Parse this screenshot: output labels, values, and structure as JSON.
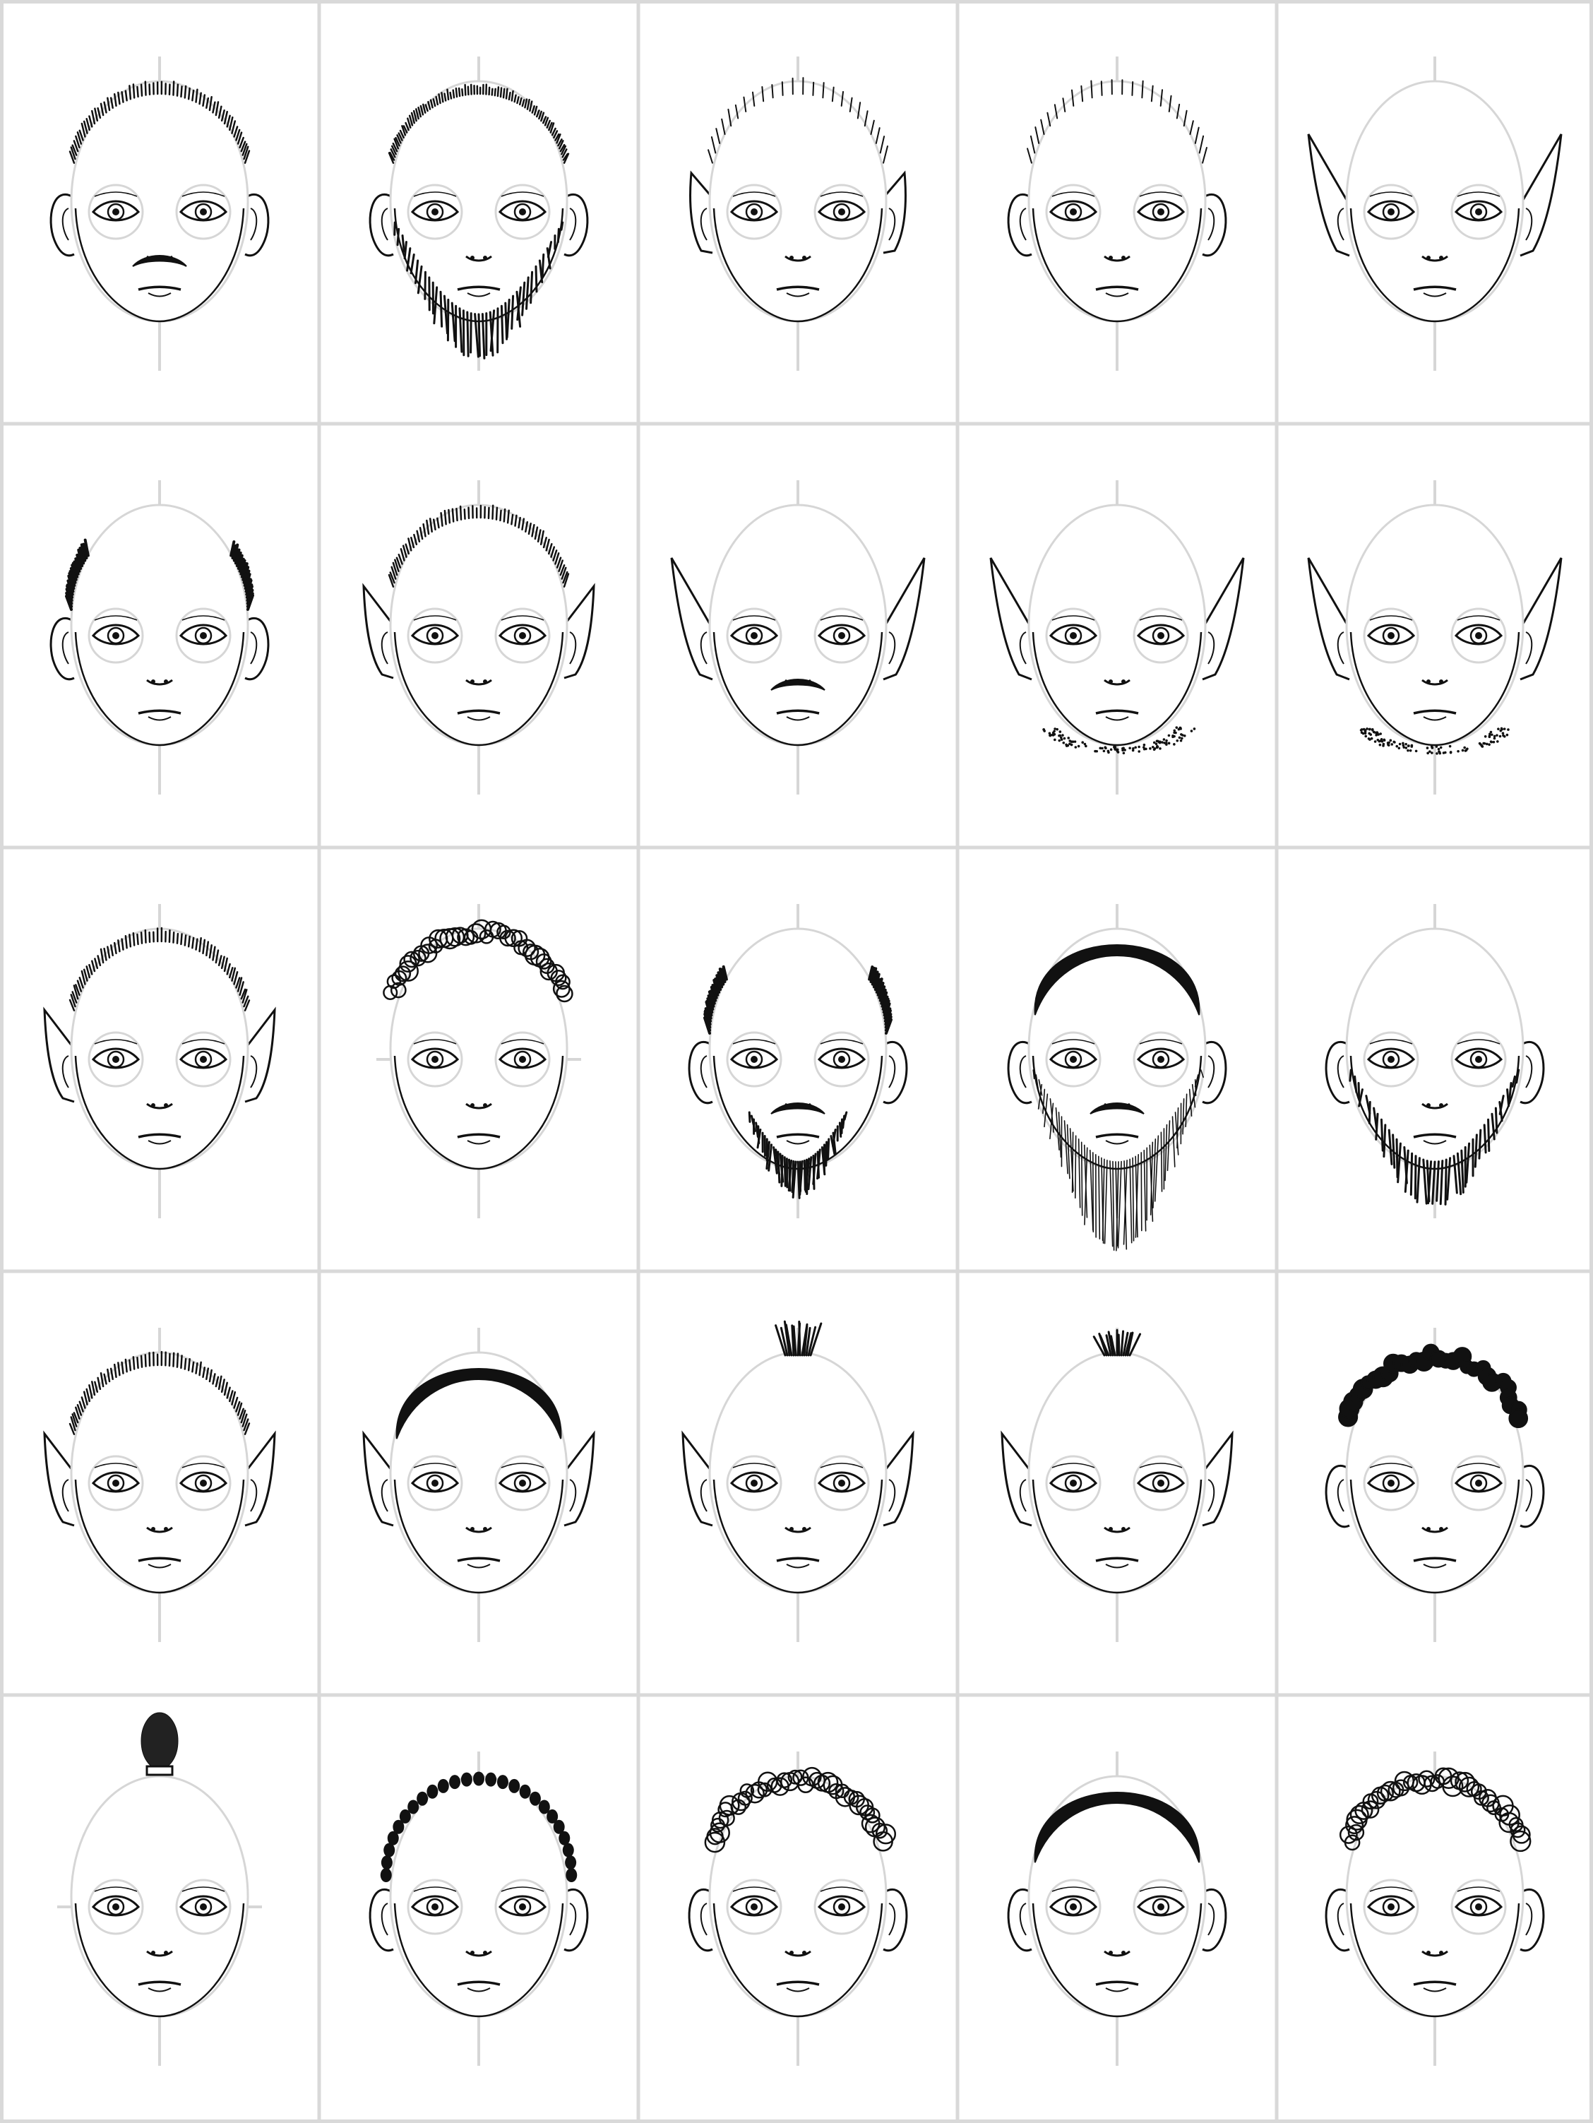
{
  "sheet": {
    "rows": 5,
    "columns": 5,
    "background": "#ffffff",
    "grid_line_color": "#d9d9d9",
    "guide_color": "#d6d6d6",
    "ink_color": "#111111"
  },
  "faces": [
    {
      "hair": "short-spiky",
      "ears": "normal",
      "beard": "none",
      "mustache": true
    },
    {
      "hair": "buzz",
      "ears": "normal",
      "beard": "full",
      "mustache": false
    },
    {
      "hair": "wavy",
      "ears": "small-pointed",
      "beard": "none",
      "mustache": false
    },
    {
      "hair": "wavy",
      "ears": "normal",
      "beard": "none",
      "mustache": false
    },
    {
      "hair": "none",
      "ears": "long-pointed",
      "beard": "none",
      "mustache": false
    },
    {
      "hair": "bald-sides",
      "ears": "normal",
      "beard": "none",
      "mustache": false
    },
    {
      "hair": "short-spiky",
      "ears": "pointed",
      "beard": "none",
      "mustache": false
    },
    {
      "hair": "none",
      "ears": "long-pointed",
      "beard": "none",
      "mustache": true
    },
    {
      "hair": "none",
      "ears": "long-pointed",
      "beard": "stubble",
      "mustache": false
    },
    {
      "hair": "none",
      "ears": "long-pointed",
      "beard": "stubble",
      "mustache": false
    },
    {
      "hair": "short-spiky",
      "ears": "pointed",
      "beard": "none",
      "mustache": false
    },
    {
      "hair": "curly",
      "ears": "hidden",
      "beard": "none",
      "mustache": false
    },
    {
      "hair": "bald-sides",
      "ears": "normal",
      "beard": "goatee",
      "mustache": true
    },
    {
      "hair": "slick-sides",
      "ears": "normal",
      "beard": "long",
      "mustache": true
    },
    {
      "hair": "bald",
      "ears": "normal",
      "beard": "full",
      "mustache": false
    },
    {
      "hair": "short-spiky",
      "ears": "pointed",
      "beard": "none",
      "mustache": false
    },
    {
      "hair": "slick",
      "ears": "pointed",
      "beard": "none",
      "mustache": false
    },
    {
      "hair": "mohawk",
      "ears": "pointed",
      "beard": "none",
      "mustache": false
    },
    {
      "hair": "mohawk-small",
      "ears": "pointed",
      "beard": "none",
      "mustache": false
    },
    {
      "hair": "dark-coily",
      "ears": "normal",
      "beard": "none",
      "mustache": false
    },
    {
      "hair": "topknot",
      "ears": "hidden",
      "beard": "none",
      "mustache": false
    },
    {
      "hair": "braids",
      "ears": "normal",
      "beard": "none",
      "mustache": false
    },
    {
      "hair": "curly",
      "ears": "normal",
      "beard": "none",
      "mustache": false
    },
    {
      "hair": "slick-part",
      "ears": "normal",
      "beard": "none",
      "mustache": false
    },
    {
      "hair": "curly",
      "ears": "normal",
      "beard": "none",
      "mustache": false
    }
  ]
}
